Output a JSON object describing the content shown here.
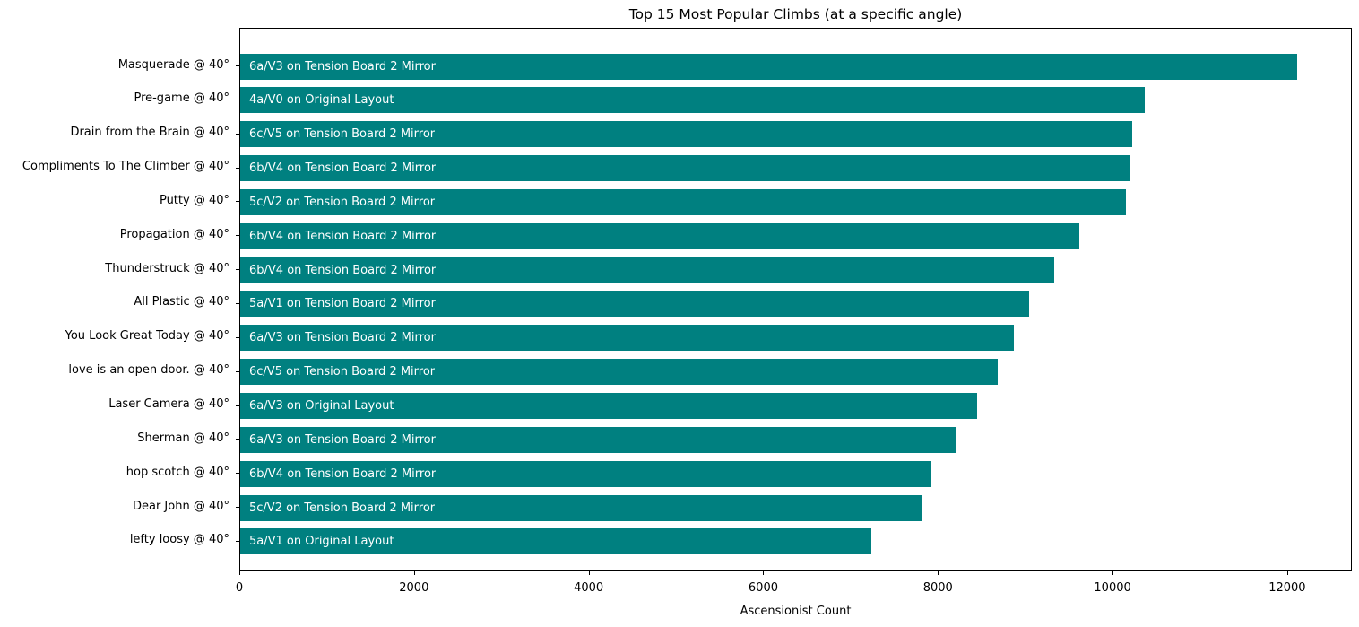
{
  "title": "Top 15 Most Popular Climbs (at a specific angle)",
  "chart_data": {
    "type": "bar",
    "orientation": "horizontal",
    "title": "Top 15 Most Popular Climbs (at a specific angle)",
    "xlabel": "Ascensionist Count",
    "ylabel": "",
    "xlim": [
      0,
      12740
    ],
    "xticks": [
      0,
      2000,
      4000,
      6000,
      8000,
      10000,
      12000
    ],
    "grid": false,
    "legend": false,
    "bar_color": "#008080",
    "bar_label_color": "#ffffff",
    "categories": [
      "Masquerade @ 40°",
      "Pre-game @ 40°",
      "Drain from the Brain @ 40°",
      "Compliments To The Climber @ 40°",
      "Putty @ 40°",
      "Propagation @ 40°",
      "Thunderstruck @ 40°",
      "All Plastic @ 40°",
      "You Look Great Today @ 40°",
      "love is an open door. @ 40°",
      "Laser Camera @ 40°",
      "Sherman @ 40°",
      "hop scotch @ 40°",
      "Dear John @ 40°",
      "lefty loosy @ 40°"
    ],
    "values": [
      12120,
      10380,
      10230,
      10200,
      10160,
      9620,
      9340,
      9050,
      8870,
      8690,
      8450,
      8210,
      7930,
      7820,
      7240
    ],
    "bar_labels": [
      "6a/V3 on Tension Board 2 Mirror",
      "4a/V0 on Original Layout",
      "6c/V5 on Tension Board 2 Mirror",
      "6b/V4 on Tension Board 2 Mirror",
      "5c/V2 on Tension Board 2 Mirror",
      "6b/V4 on Tension Board 2 Mirror",
      "6b/V4 on Tension Board 2 Mirror",
      "5a/V1 on Tension Board 2 Mirror",
      "6a/V3 on Tension Board 2 Mirror",
      "6c/V5 on Tension Board 2 Mirror",
      "6a/V3 on Original Layout",
      "6a/V3 on Tension Board 2 Mirror",
      "6b/V4 on Tension Board 2 Mirror",
      "5c/V2 on Tension Board 2 Mirror",
      "5a/V1 on Original Layout"
    ]
  }
}
